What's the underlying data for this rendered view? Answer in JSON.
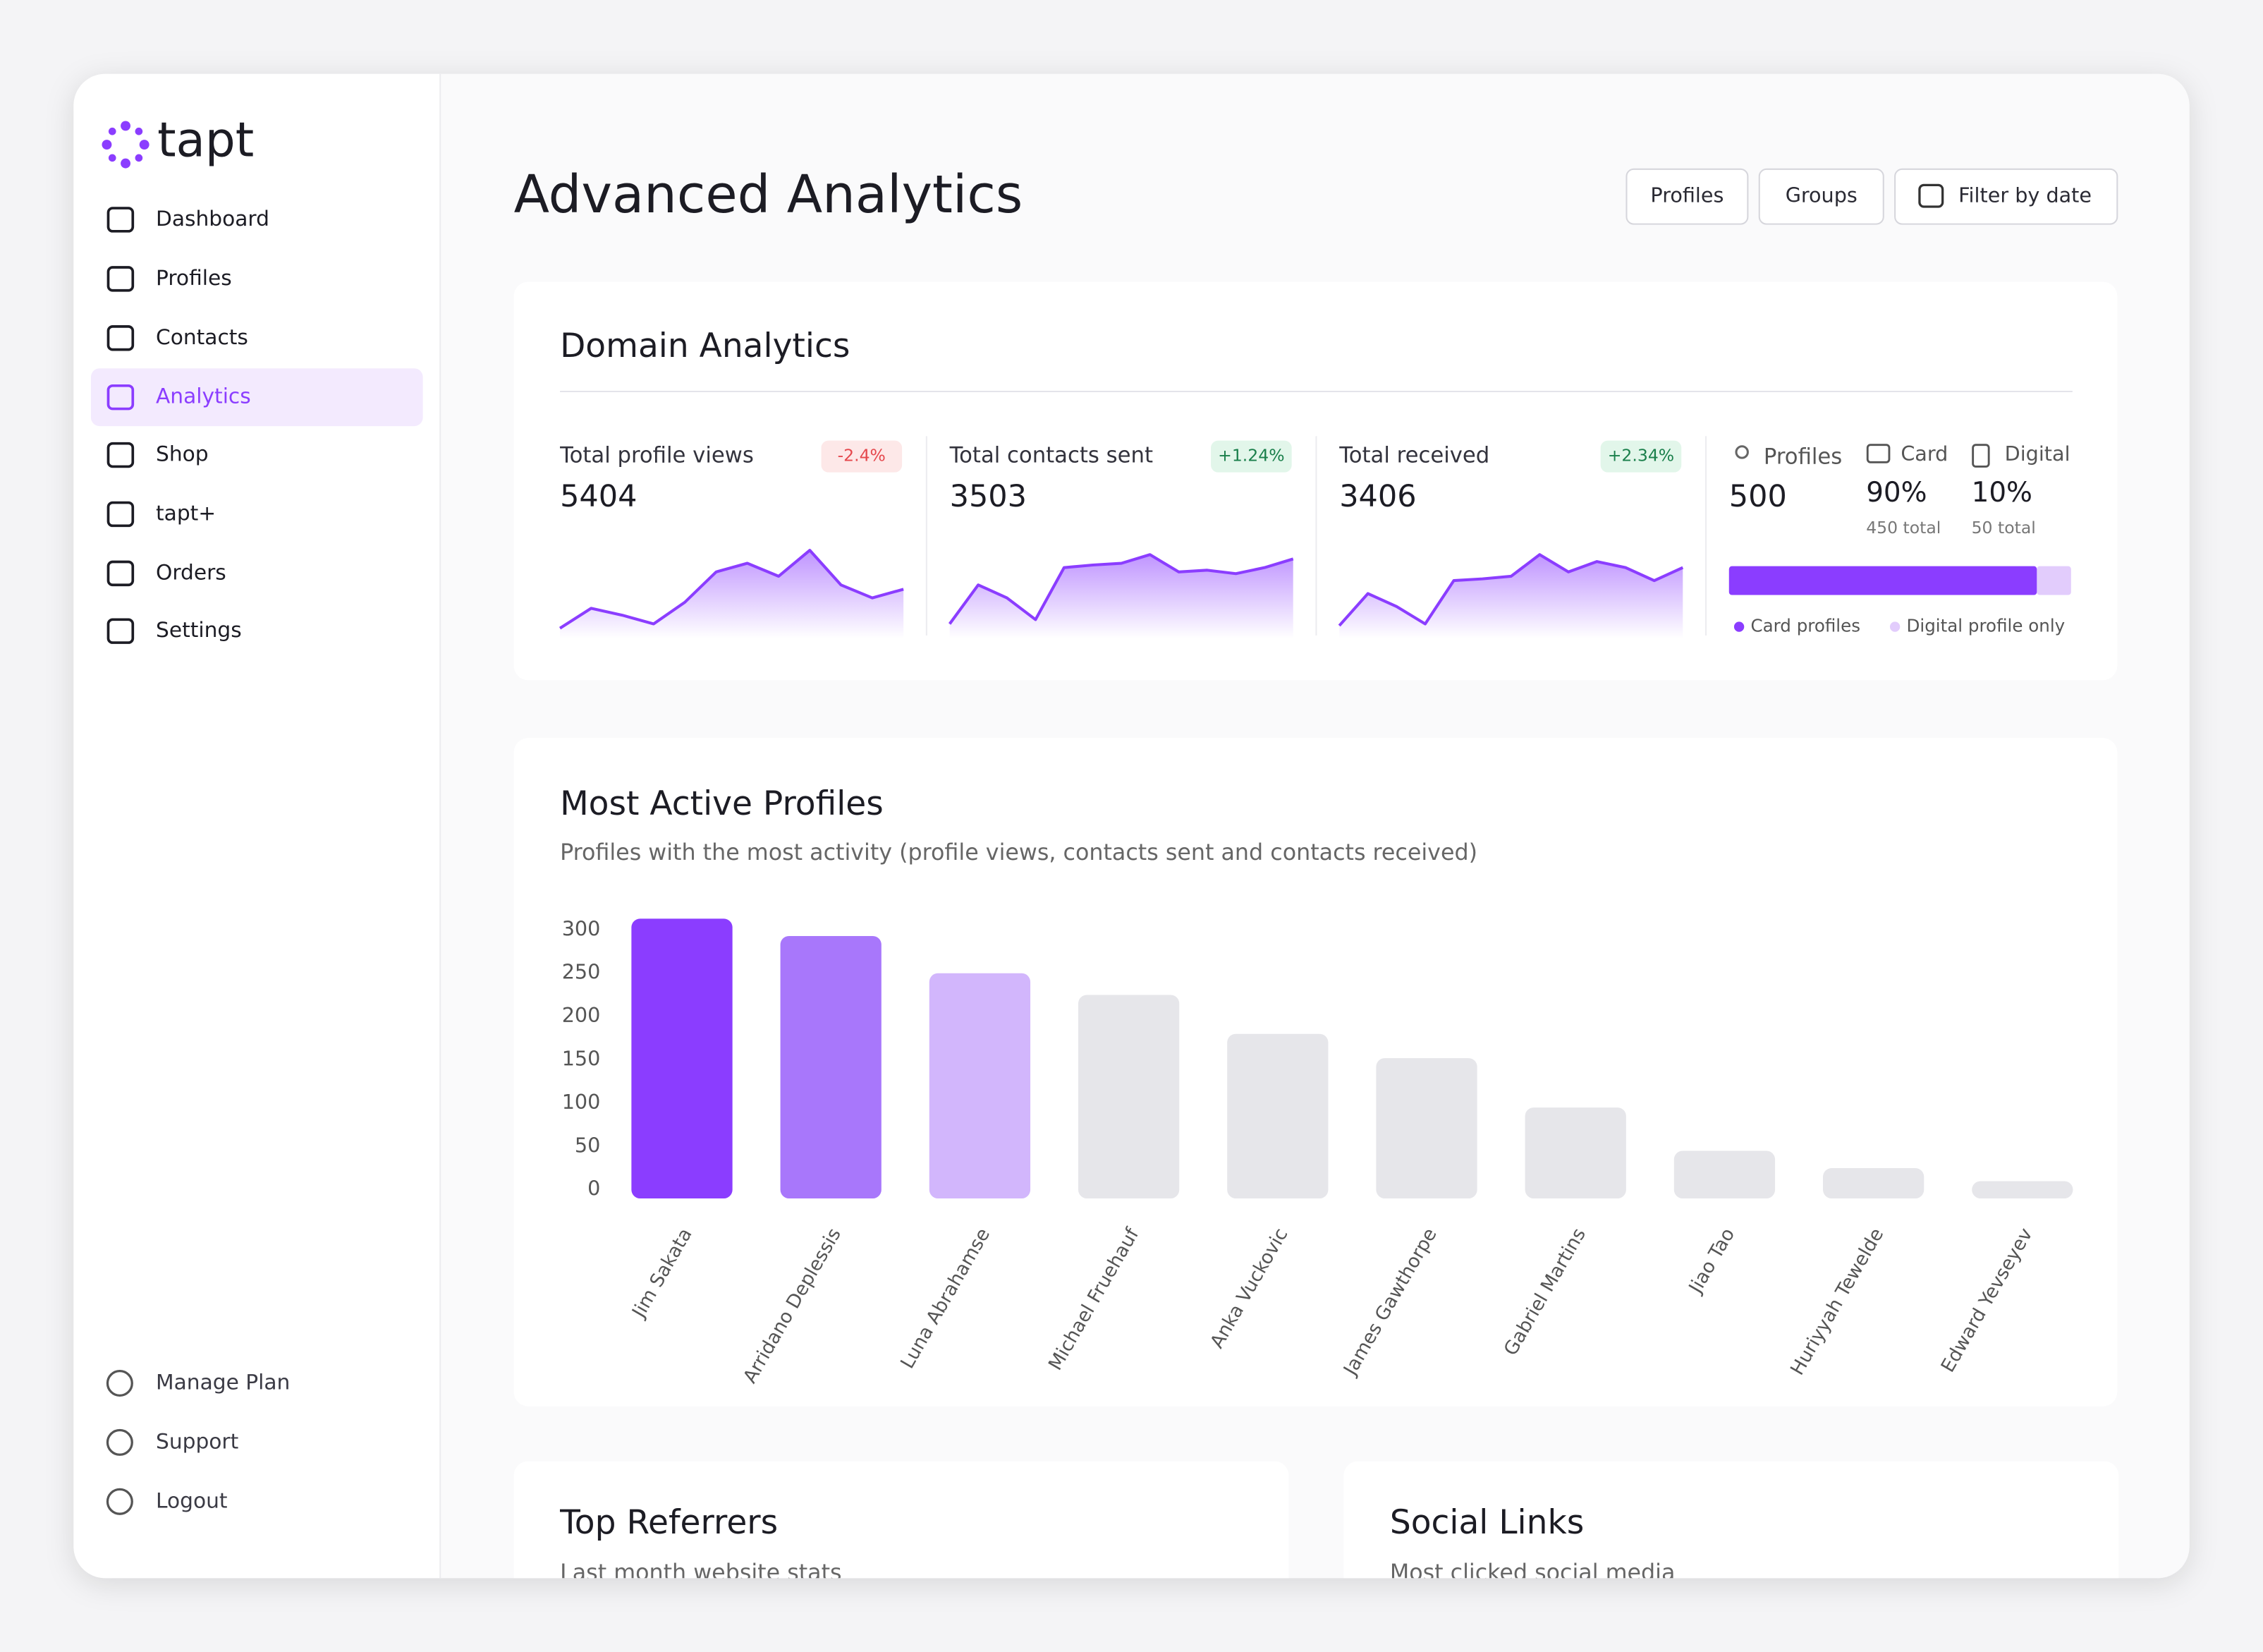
{
  "sidebar": {
    "logo": "tapt",
    "nav": [
      "Dashboard",
      "Profiles",
      "Contacts",
      "Analytics",
      "Shop",
      "tapt+",
      "Orders",
      "Settings"
    ],
    "active_nav": 3,
    "footer": [
      "Manage Plan",
      "Support",
      "Logout"
    ]
  },
  "header": {
    "title": "Advanced Analytics",
    "buttons": [
      "Profiles",
      "Groups",
      "Filter by date"
    ]
  },
  "domain": {
    "title": "Domain Analytics",
    "stats": [
      {
        "label": "Total profile views",
        "change": "-2.4%",
        "value": 5404,
        "trend": [
          5,
          28,
          20,
          10,
          35,
          70,
          80,
          65,
          95,
          55,
          40,
          50
        ]
      },
      {
        "label": "Total contacts sent",
        "change": "+1.24%",
        "value": 3503,
        "trend": [
          10,
          55,
          40,
          15,
          75,
          78,
          80,
          90,
          70,
          72,
          68,
          75,
          85
        ]
      },
      {
        "label": "Total received",
        "change": "+2.34%",
        "value": 3406,
        "trend": [
          8,
          45,
          30,
          10,
          60,
          62,
          65,
          90,
          70,
          82,
          75,
          60,
          75
        ]
      }
    ],
    "breakdown": {
      "profiles_label": "Profiles",
      "profiles_value": 500,
      "card": {
        "label": "Card",
        "value": 90,
        "value_label": "90%",
        "total": "450 total"
      },
      "digital": {
        "label": "Digital",
        "value": 10,
        "value_label": "10%",
        "total": "50 total"
      },
      "legend": [
        "Card profiles",
        "Digital profile only"
      ]
    }
  },
  "chart_data": {
    "type": "bar",
    "title": "Most Active Profiles",
    "subtitle": "Profiles with the most activity (profile views, contacts sent and contacts received)",
    "categories": [
      "Jim Sakata",
      "Arridano Deplessis",
      "Luna Abrahamse",
      "Michael Fruehauf",
      "Anka Vuckovic",
      "James Gawthorpe",
      "Gabriel Martins",
      "Jiao Tao",
      "Huriyyah Tewelde",
      "Edward Yevseyev"
    ],
    "values": [
      323,
      303,
      260,
      235,
      190,
      162,
      105,
      55,
      35,
      20
    ],
    "colors": [
      "#8b3dff",
      "#a877fb",
      "#d2b6fc",
      "#e6e6ea",
      "#e6e6ea",
      "#e6e6ea",
      "#e6e6ea",
      "#e6e6ea",
      "#e6e6ea",
      "#e6e6ea"
    ],
    "ylim": [
      0,
      300
    ],
    "yticks": [
      0,
      50,
      100,
      150,
      200,
      250,
      300
    ]
  },
  "panels": [
    {
      "title": "Top Referrers",
      "subtitle": "Last month website stats"
    },
    {
      "title": "Social Links",
      "subtitle": "Most clicked social media"
    }
  ]
}
